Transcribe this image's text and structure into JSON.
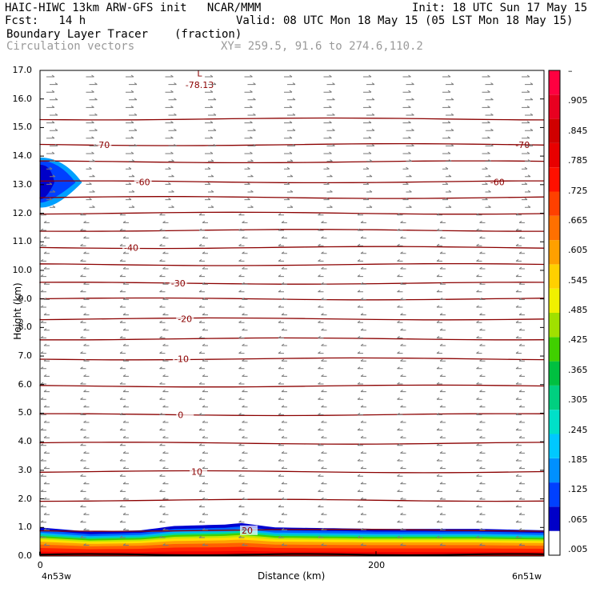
{
  "header": {
    "line1_left": "HAIC-HIWC 13km ARW-GFS init   NCAR/MMM",
    "line1_right": "Init: 18 UTC Sun 17 May 15",
    "line2_left": "Fcst:   14 h",
    "line2_right": "Valid: 08 UTC Mon 18 May 15 (05 LST Mon 18 May 15)",
    "line3_left": "Boundary Layer Tracer",
    "line3_mid": "(fraction)",
    "line4_left": "Circulation vectors",
    "line4_mid": "XY= 259.5, 91.6 to 274.6,110.2"
  },
  "chart_data": {
    "type": "heatmap",
    "title": "Boundary Layer Tracer",
    "units": "(fraction)",
    "xlabel": "Distance (km)",
    "ylabel": "Height (km)",
    "xlim": [
      0,
      300
    ],
    "ylim": [
      0,
      17
    ],
    "x_ticks": [
      {
        "value": 0,
        "label": "0"
      },
      {
        "value": 200,
        "label": "200"
      }
    ],
    "x_endpoints": {
      "left": "4n53w",
      "right": "6n51w"
    },
    "y_ticks": [
      "0.0",
      "1.0",
      "2.0",
      "3.0",
      "4.0",
      "5.0",
      "6.0",
      "7.0",
      "8.0",
      "9.0",
      "10.0",
      "11.0",
      "12.0",
      "13.0",
      "14.0",
      "15.0",
      "16.0",
      "17.0"
    ],
    "colorbar": {
      "labels": [
        ".005",
        ".065",
        ".125",
        ".185",
        ".245",
        ".305",
        ".365",
        ".425",
        ".485",
        ".545",
        ".605",
        ".665",
        ".725",
        ".785",
        ".845",
        ".905",
        "–"
      ],
      "colors": [
        "#ffffff",
        "#0000c8",
        "#0040ff",
        "#0090ff",
        "#00c8ff",
        "#00e0c8",
        "#00d080",
        "#00c040",
        "#40d000",
        "#a0e000",
        "#f0f000",
        "#ffd000",
        "#ffa000",
        "#ff7000",
        "#ff4000",
        "#ff1000",
        "#e80000",
        "#d00000",
        "#e80020",
        "#ff0040"
      ]
    },
    "temperature_contours": [
      {
        "label": "20",
        "height_km": 0.9
      },
      {
        "label": "10",
        "height_km": 2.95
      },
      {
        "label": "0",
        "height_km": 4.95
      },
      {
        "label": "-10",
        "height_km": 6.9
      },
      {
        "label": "-20",
        "height_km": 8.3
      },
      {
        "label": "-30",
        "height_km": 9.55
      },
      {
        "label": "-40",
        "height_km": 10.8
      },
      {
        "label": "-60",
        "height_km": 13.1
      },
      {
        "label": "-70",
        "height_km": 14.4
      }
    ],
    "annotations": [
      {
        "text": "L",
        "x_km": 95,
        "y_km": 16.9
      },
      {
        "text": "-78.13",
        "x_km": 95,
        "y_km": 16.5
      }
    ],
    "tracer_layer": {
      "top_km_by_x": [
        [
          0,
          1.0
        ],
        [
          30,
          0.85
        ],
        [
          60,
          0.9
        ],
        [
          80,
          1.05
        ],
        [
          110,
          1.1
        ],
        [
          120,
          1.15
        ],
        [
          140,
          1.0
        ],
        [
          200,
          0.95
        ],
        [
          260,
          0.95
        ],
        [
          300,
          0.9
        ]
      ]
    },
    "upper_feature": {
      "x_km": [
        0,
        25
      ],
      "y_km": [
        12.2,
        13.95
      ]
    }
  }
}
